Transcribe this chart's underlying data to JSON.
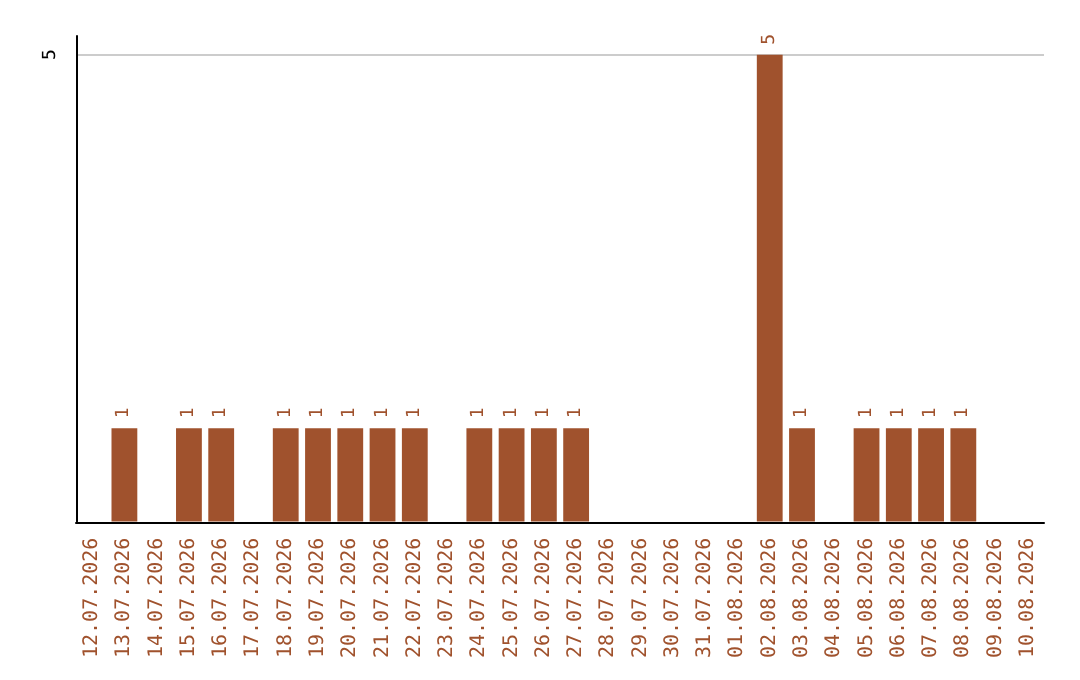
{
  "chart_data": {
    "type": "bar",
    "categories": [
      "12.07.2026",
      "13.07.2026",
      "14.07.2026",
      "15.07.2026",
      "16.07.2026",
      "17.07.2026",
      "18.07.2026",
      "19.07.2026",
      "20.07.2026",
      "21.07.2026",
      "22.07.2026",
      "23.07.2026",
      "24.07.2026",
      "25.07.2026",
      "26.07.2026",
      "27.07.2026",
      "28.07.2026",
      "29.07.2026",
      "30.07.2026",
      "31.07.2026",
      "01.08.2026",
      "02.08.2026",
      "03.08.2026",
      "04.08.2026",
      "05.08.2026",
      "06.08.2026",
      "07.08.2026",
      "08.08.2026",
      "09.08.2026",
      "10.08.2026"
    ],
    "values": [
      0,
      1,
      0,
      1,
      1,
      0,
      1,
      1,
      1,
      1,
      1,
      0,
      1,
      1,
      1,
      1,
      0,
      0,
      0,
      0,
      0,
      5,
      1,
      0,
      1,
      1,
      1,
      1,
      0,
      0
    ],
    "value_labels": [
      null,
      "1",
      null,
      "1",
      "1",
      null,
      "1",
      "1",
      "1",
      "1",
      "1",
      null,
      "1",
      "1",
      "1",
      "1",
      null,
      null,
      null,
      null,
      null,
      "5",
      "1",
      null,
      "1",
      "1",
      "1",
      "1",
      null,
      null
    ],
    "color": "#a0522d",
    "ylim": [
      0,
      5.2
    ],
    "yticks": [
      5
    ],
    "grid": "y"
  }
}
